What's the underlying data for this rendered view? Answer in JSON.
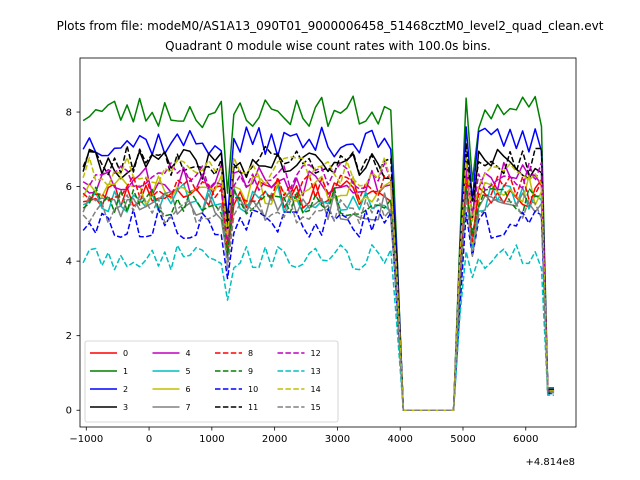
{
  "chart_data": {
    "type": "line",
    "suptitle": "Plots from file: modeM0/AS1A13_090T01_9000006458_51468cztM0_level2_quad_clean.evt",
    "title": "Quadrant 0 module wise count rates with 100.0s bins.",
    "xlabel": "",
    "ylabel": "",
    "x_offset_label": "+4.814e8",
    "xlim": [
      -1100,
      6800
    ],
    "ylim": [
      -0.45,
      9.45
    ],
    "xticks": [
      -1000,
      0,
      1000,
      2000,
      3000,
      4000,
      5000,
      6000
    ],
    "xtick_labels": [
      "−1000",
      "0",
      "1000",
      "2000",
      "3000",
      "4000",
      "5000",
      "6000"
    ],
    "yticks": [
      0,
      2,
      4,
      6,
      8
    ],
    "ytick_labels": [
      "0",
      "2",
      "4",
      "6",
      "8"
    ],
    "legend_location": "lower-left",
    "x_range": {
      "start": -1050,
      "end": 6450,
      "step": 100
    },
    "series": [
      {
        "name": "0",
        "color": "#ff0000",
        "dash": "solid",
        "base": 5.8,
        "amp": 0.4,
        "seed": 11
      },
      {
        "name": "1",
        "color": "#008000",
        "dash": "solid",
        "base": 8.0,
        "amp": 0.45,
        "seed": 23
      },
      {
        "name": "2",
        "color": "#0000ff",
        "dash": "solid",
        "base": 7.2,
        "amp": 0.4,
        "seed": 37
      },
      {
        "name": "3",
        "color": "#000000",
        "dash": "solid",
        "base": 6.6,
        "amp": 0.4,
        "seed": 41
      },
      {
        "name": "4",
        "color": "#bf00bf",
        "dash": "solid",
        "base": 6.2,
        "amp": 0.45,
        "seed": 53
      },
      {
        "name": "5",
        "color": "#00bfbf",
        "dash": "solid",
        "base": 5.7,
        "amp": 0.4,
        "seed": 67
      },
      {
        "name": "6",
        "color": "#bfbf00",
        "dash": "solid",
        "base": 5.9,
        "amp": 0.4,
        "seed": 71
      },
      {
        "name": "7",
        "color": "#808080",
        "dash": "solid",
        "base": 5.5,
        "amp": 0.4,
        "seed": 83
      },
      {
        "name": "8",
        "color": "#ff0000",
        "dash": "dashed",
        "base": 6.0,
        "amp": 0.4,
        "seed": 97
      },
      {
        "name": "9",
        "color": "#008000",
        "dash": "dashed",
        "base": 5.6,
        "amp": 0.4,
        "seed": 101
      },
      {
        "name": "10",
        "color": "#0000ff",
        "dash": "dashed",
        "base": 5.0,
        "amp": 0.4,
        "seed": 113
      },
      {
        "name": "11",
        "color": "#000000",
        "dash": "dashed",
        "base": 6.7,
        "amp": 0.4,
        "seed": 127
      },
      {
        "name": "12",
        "color": "#bf00bf",
        "dash": "dashed",
        "base": 6.3,
        "amp": 0.4,
        "seed": 131
      },
      {
        "name": "13",
        "color": "#00bfbf",
        "dash": "dashed",
        "base": 4.1,
        "amp": 0.35,
        "seed": 149
      },
      {
        "name": "14",
        "color": "#bfbf00",
        "dash": "dashed",
        "base": 6.4,
        "amp": 0.4,
        "seed": 151
      },
      {
        "name": "15",
        "color": "#808080",
        "dash": "dashed",
        "base": 5.4,
        "amp": 0.4,
        "seed": 163
      }
    ]
  }
}
